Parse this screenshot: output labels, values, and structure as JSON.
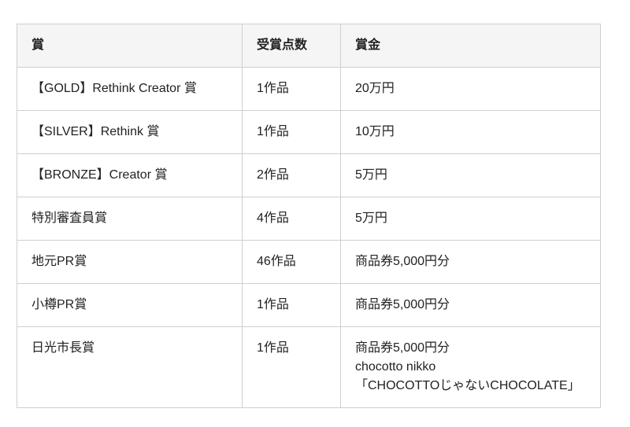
{
  "table": {
    "columns": [
      "賞",
      "受賞点数",
      "賞金"
    ],
    "rows": [
      {
        "award": "【GOLD】Rethink Creator 賞",
        "count": "1作品",
        "prize": [
          "20万円"
        ]
      },
      {
        "award": "【SILVER】Rethink 賞",
        "count": "1作品",
        "prize": [
          "10万円"
        ]
      },
      {
        "award": "【BRONZE】Creator 賞",
        "count": "2作品",
        "prize": [
          "5万円"
        ]
      },
      {
        "award": "特別審査員賞",
        "count": "4作品",
        "prize": [
          "5万円"
        ]
      },
      {
        "award": "地元PR賞",
        "count": "46作品",
        "prize": [
          "商品券5,000円分"
        ]
      },
      {
        "award": "小樽PR賞",
        "count": "1作品",
        "prize": [
          "商品券5,000円分"
        ]
      },
      {
        "award": "日光市長賞",
        "count": "1作品",
        "prize": [
          "商品券5,000円分",
          "chocotto nikko",
          "「CHOCOTTOじゃないCHOCOLATE」"
        ]
      }
    ],
    "colors": {
      "header_bg": "#f5f5f5",
      "border": "#cfcfcf",
      "text": "#222222",
      "page_bg": "#ffffff"
    }
  },
  "chart_data": {
    "type": "table",
    "title": "",
    "columns": [
      "賞",
      "受賞点数",
      "賞金"
    ],
    "rows": [
      [
        "【GOLD】Rethink Creator 賞",
        "1作品",
        "20万円"
      ],
      [
        "【SILVER】Rethink 賞",
        "1作品",
        "10万円"
      ],
      [
        "【BRONZE】Creator 賞",
        "2作品",
        "5万円"
      ],
      [
        "特別審査員賞",
        "4作品",
        "5万円"
      ],
      [
        "地元PR賞",
        "46作品",
        "商品券5,000円分"
      ],
      [
        "小樽PR賞",
        "1作品",
        "商品券5,000円分"
      ],
      [
        "日光市長賞",
        "1作品",
        "商品券5,000円分 chocotto nikko 「CHOCOTTOじゃないCHOCOLATE」"
      ]
    ]
  }
}
